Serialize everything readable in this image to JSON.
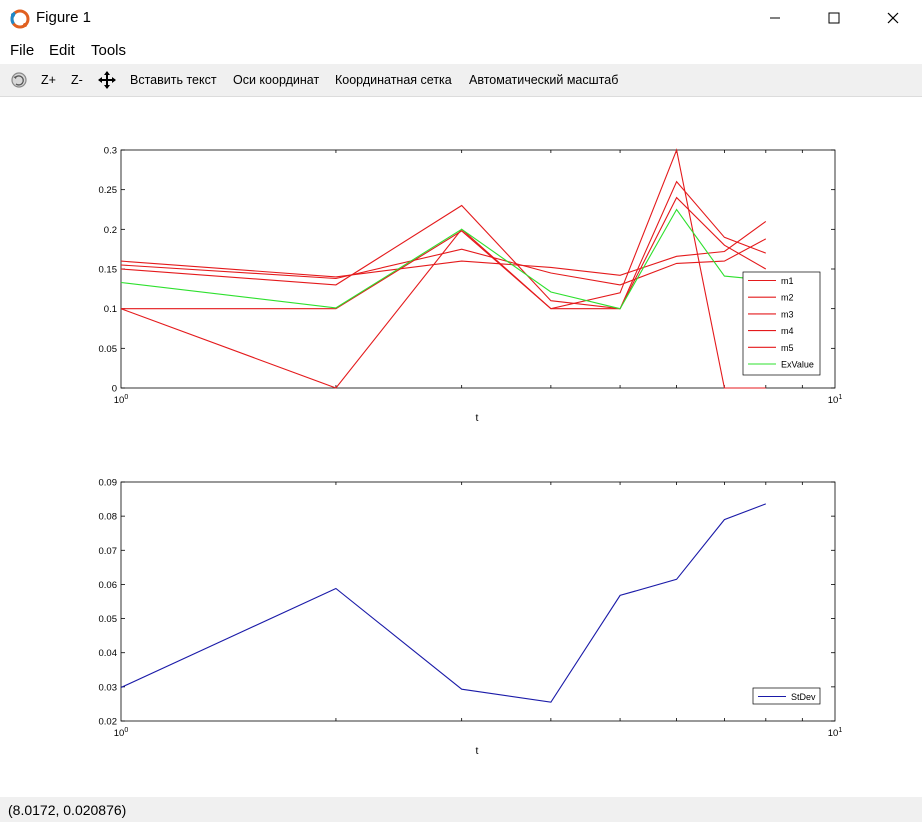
{
  "window": {
    "title": "Figure 1",
    "icon": "octave-logo-icon",
    "controls": [
      "minimize-icon",
      "maximize-icon",
      "close-icon"
    ]
  },
  "menubar": {
    "items": [
      "File",
      "Edit",
      "Tools"
    ]
  },
  "toolbar": {
    "rotate_icon": "rotate-icon",
    "zoom_in": "Z+",
    "zoom_out": "Z-",
    "pan_icon": "pan-icon",
    "insert_text": "Вставить текст",
    "axes": "Оси координат",
    "grid": "Координатная сетка",
    "autoscale": "Автоматический масштаб"
  },
  "status": {
    "text": "(8.0172, 0.020876)"
  },
  "chart_data": [
    {
      "type": "line",
      "xscale": "log",
      "xlabel": "t",
      "ylabel": "",
      "xlim": [
        1,
        10
      ],
      "ylim": [
        0,
        0.3
      ],
      "xticks": [
        "10^0",
        "10^1"
      ],
      "yticks": [
        "0",
        "0.05",
        "0.1",
        "0.15",
        "0.2",
        "0.25",
        "0.3"
      ],
      "x": [
        1,
        2,
        3,
        4,
        5,
        6,
        7,
        8
      ],
      "legend_position": "right",
      "series": [
        {
          "name": "m1",
          "color": "#e41a1c",
          "values": [
            0.16,
            0.14,
            0.16,
            0.152,
            0.142,
            0.166,
            0.172,
            0.21
          ]
        },
        {
          "name": "m2",
          "color": "#e41a1c",
          "values": [
            0.1,
            0.0,
            0.2,
            0.1,
            0.12,
            0.3,
            0.0,
            0.0
          ]
        },
        {
          "name": "m3",
          "color": "#e41a1c",
          "values": [
            0.1,
            0.1,
            0.198,
            0.1,
            0.1,
            0.26,
            0.19,
            0.17
          ]
        },
        {
          "name": "m4",
          "color": "#e41a1c",
          "values": [
            0.155,
            0.138,
            0.175,
            0.145,
            0.13,
            0.157,
            0.16,
            0.188
          ]
        },
        {
          "name": "m5",
          "color": "#e41a1c",
          "values": [
            0.15,
            0.13,
            0.23,
            0.11,
            0.1,
            0.24,
            0.18,
            0.15
          ]
        },
        {
          "name": "ExValue",
          "color": "#2ee02e",
          "values": [
            0.133,
            0.101,
            0.2,
            0.121,
            0.1,
            0.225,
            0.141,
            0.136
          ]
        }
      ]
    },
    {
      "type": "line",
      "xscale": "log",
      "xlabel": "t",
      "ylabel": "",
      "xlim": [
        1,
        10
      ],
      "ylim": [
        0.02,
        0.09
      ],
      "xticks": [
        "10^0",
        "10^1"
      ],
      "yticks": [
        "0.02",
        "0.03",
        "0.04",
        "0.05",
        "0.06",
        "0.07",
        "0.08",
        "0.09"
      ],
      "x": [
        1,
        2,
        3,
        4,
        5,
        6,
        7,
        8
      ],
      "legend_position": "bottom-right",
      "series": [
        {
          "name": "StDev",
          "color": "#1a1aa8",
          "values": [
            0.0298,
            0.0588,
            0.0293,
            0.0255,
            0.0568,
            0.0615,
            0.079,
            0.0836
          ]
        }
      ]
    }
  ]
}
